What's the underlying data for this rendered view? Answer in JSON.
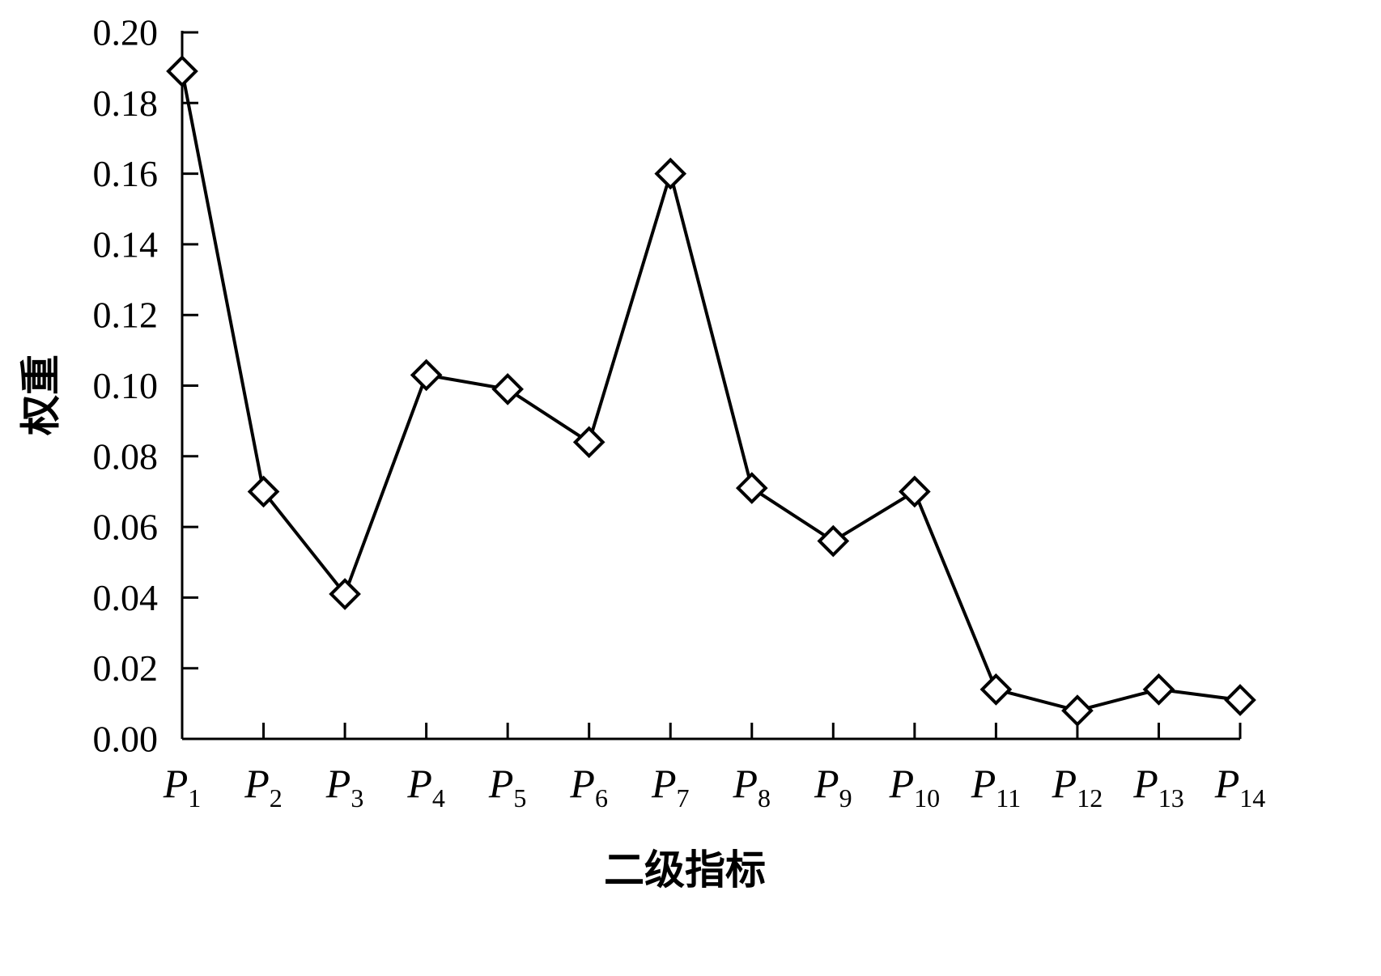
{
  "chart_data": {
    "type": "line",
    "xlabel": "二级指标",
    "ylabel": "权重",
    "categories": [
      {
        "base": "P",
        "sub": "1"
      },
      {
        "base": "P",
        "sub": "2"
      },
      {
        "base": "P",
        "sub": "3"
      },
      {
        "base": "P",
        "sub": "4"
      },
      {
        "base": "P",
        "sub": "5"
      },
      {
        "base": "P",
        "sub": "6"
      },
      {
        "base": "P",
        "sub": "7"
      },
      {
        "base": "P",
        "sub": "8"
      },
      {
        "base": "P",
        "sub": "9"
      },
      {
        "base": "P",
        "sub": "10"
      },
      {
        "base": "P",
        "sub": "11"
      },
      {
        "base": "P",
        "sub": "12"
      },
      {
        "base": "P",
        "sub": "13"
      },
      {
        "base": "P",
        "sub": "14"
      }
    ],
    "values": [
      0.189,
      0.07,
      0.041,
      0.103,
      0.099,
      0.084,
      0.16,
      0.071,
      0.056,
      0.07,
      0.014,
      0.008,
      0.014,
      0.011
    ],
    "ylim": [
      0,
      0.2
    ],
    "yticks": [
      "0.00",
      "0.02",
      "0.04",
      "0.06",
      "0.08",
      "0.10",
      "0.12",
      "0.14",
      "0.16",
      "0.18",
      "0.20"
    ],
    "marker": "open-diamond",
    "line_color": "#000000",
    "grid": false,
    "legend": "none"
  }
}
